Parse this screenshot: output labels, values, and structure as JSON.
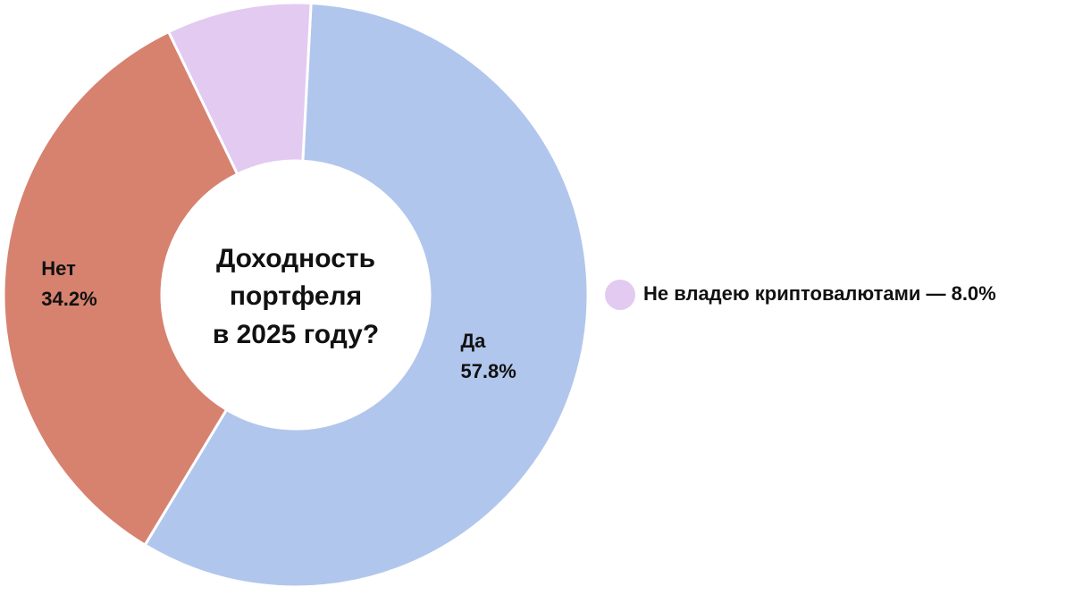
{
  "chart_data": {
    "type": "donut",
    "title": [
      "Доходность",
      "портфеля",
      "в 2025 году?"
    ],
    "categories": [
      "Да",
      "Нет",
      "Не владею криптовалютами"
    ],
    "values": [
      57.8,
      34.2,
      8.0
    ],
    "value_labels": [
      "57.8%",
      "34.2%",
      "— 8.0%"
    ],
    "colors": [
      "#b1c6ec",
      "#d6826f",
      "#e3caf1"
    ]
  }
}
